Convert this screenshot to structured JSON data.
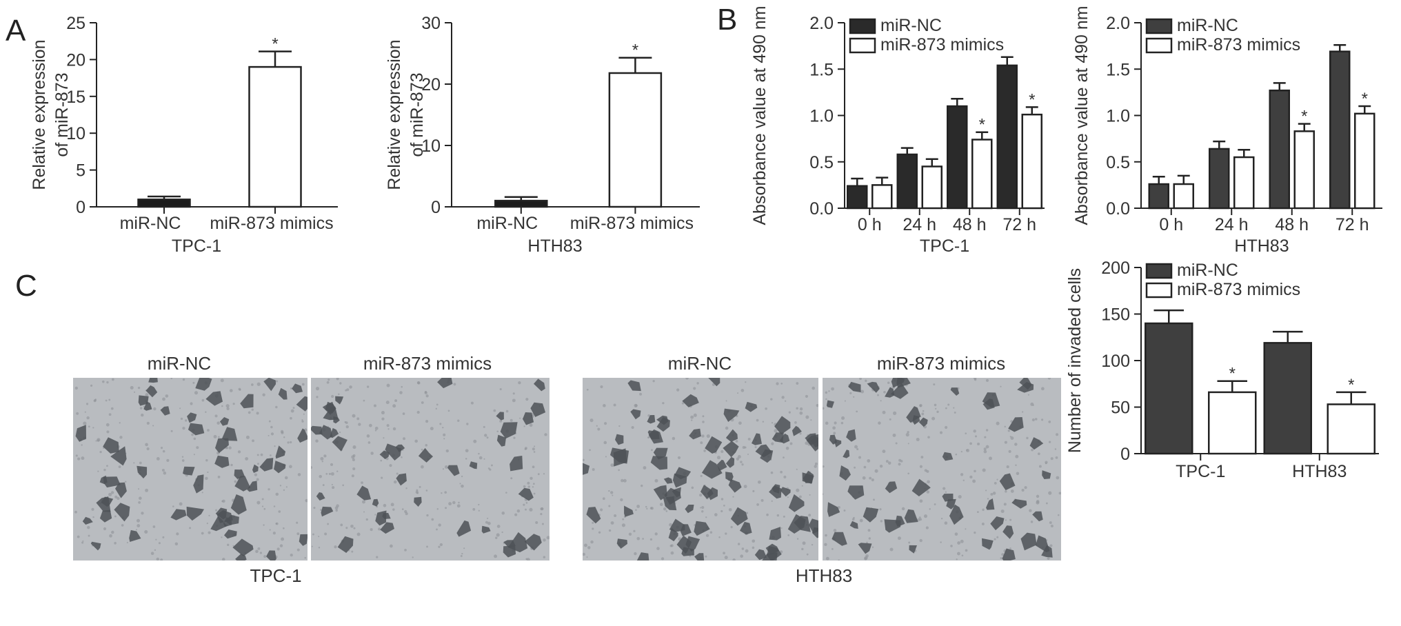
{
  "panels": {
    "a": "A",
    "b": "B",
    "c": "C"
  },
  "colors": {
    "dark": "#2a2a2a",
    "dark2": "#3f3f3f",
    "open": "#ffffff",
    "stroke": "#222222",
    "micro_bg": "#b9bcc0",
    "cell": "#4e5257"
  },
  "chart_data": [
    {
      "id": "A1",
      "type": "bar",
      "categories": [
        "miR-NC",
        "miR-873 mimics"
      ],
      "values": [
        1.0,
        19.0
      ],
      "errors": [
        0.4,
        2.1
      ],
      "significance": [
        "",
        "*"
      ],
      "ylabel_lines": [
        "Relative expression",
        "of miR-873"
      ],
      "xtitle": "TPC-1",
      "ylim": [
        0,
        25
      ],
      "yticks": [
        "0",
        "5",
        "10",
        "15",
        "20",
        "25"
      ],
      "bar_colors": [
        "#1c1c1c",
        "#ffffff"
      ]
    },
    {
      "id": "A2",
      "type": "bar",
      "categories": [
        "miR-NC",
        "miR-873 mimics"
      ],
      "values": [
        1.0,
        21.8
      ],
      "errors": [
        0.6,
        2.5
      ],
      "significance": [
        "",
        "*"
      ],
      "ylabel_lines": [
        "Relative expression",
        "of miR-873"
      ],
      "xtitle": "HTH83",
      "ylim": [
        0,
        30
      ],
      "yticks": [
        "0",
        "10",
        "20",
        "30"
      ],
      "bar_colors": [
        "#1c1c1c",
        "#ffffff"
      ]
    },
    {
      "id": "B1",
      "type": "bar",
      "categories": [
        "0 h",
        "24 h",
        "48 h",
        "72 h"
      ],
      "series": [
        {
          "name": "miR-NC",
          "values": [
            0.24,
            0.58,
            1.1,
            1.54
          ],
          "errors": [
            0.08,
            0.07,
            0.08,
            0.09
          ],
          "color": "#2a2a2a"
        },
        {
          "name": "miR-873 mimics",
          "values": [
            0.25,
            0.45,
            0.74,
            1.01
          ],
          "errors": [
            0.08,
            0.08,
            0.08,
            0.08
          ],
          "color": "#ffffff"
        }
      ],
      "significance": [
        "",
        "",
        "*",
        "*"
      ],
      "ylabel": "Absorbance value at 490 nm",
      "xtitle": "TPC-1",
      "ylim": [
        0,
        2.0
      ],
      "yticks": [
        "0.0",
        "0.5",
        "1.0",
        "1.5",
        "2.0"
      ],
      "legend": "top-left"
    },
    {
      "id": "B2",
      "type": "bar",
      "categories": [
        "0 h",
        "24 h",
        "48 h",
        "72 h"
      ],
      "series": [
        {
          "name": "miR-NC",
          "values": [
            0.26,
            0.64,
            1.27,
            1.69
          ],
          "errors": [
            0.08,
            0.08,
            0.08,
            0.07
          ],
          "color": "#3f3f3f"
        },
        {
          "name": "miR-873 mimics",
          "values": [
            0.26,
            0.55,
            0.83,
            1.02
          ],
          "errors": [
            0.09,
            0.08,
            0.08,
            0.08
          ],
          "color": "#ffffff"
        }
      ],
      "significance": [
        "",
        "",
        "*",
        "*"
      ],
      "ylabel": "Absorbance value at 490 nm",
      "xtitle": "HTH83",
      "ylim": [
        0,
        2.0
      ],
      "yticks": [
        "0.0",
        "0.5",
        "1.0",
        "1.5",
        "2.0"
      ],
      "legend": "top-left"
    },
    {
      "id": "C",
      "type": "bar",
      "categories": [
        "TPC-1",
        "HTH83"
      ],
      "series": [
        {
          "name": "miR-NC",
          "values": [
            140,
            119
          ],
          "errors": [
            14,
            12
          ],
          "color": "#3f3f3f"
        },
        {
          "name": "miR-873 mimics",
          "values": [
            66,
            53
          ],
          "errors": [
            12,
            13
          ],
          "color": "#ffffff"
        }
      ],
      "significance": [
        "*",
        "*"
      ],
      "ylabel": "Number of invaded cells",
      "ylim": [
        0,
        200
      ],
      "yticks": [
        "0",
        "50",
        "100",
        "150",
        "200"
      ],
      "legend": "top-left"
    }
  ],
  "micrographs": {
    "tpc": {
      "left_label": "miR-NC",
      "right_label": "miR-873 mimics",
      "caption": "TPC-1",
      "left_density": 55,
      "right_density": 40
    },
    "hth": {
      "left_label": "miR-NC",
      "right_label": "miR-873 mimics",
      "caption": "HTH83",
      "left_density": 75,
      "right_density": 50
    }
  }
}
